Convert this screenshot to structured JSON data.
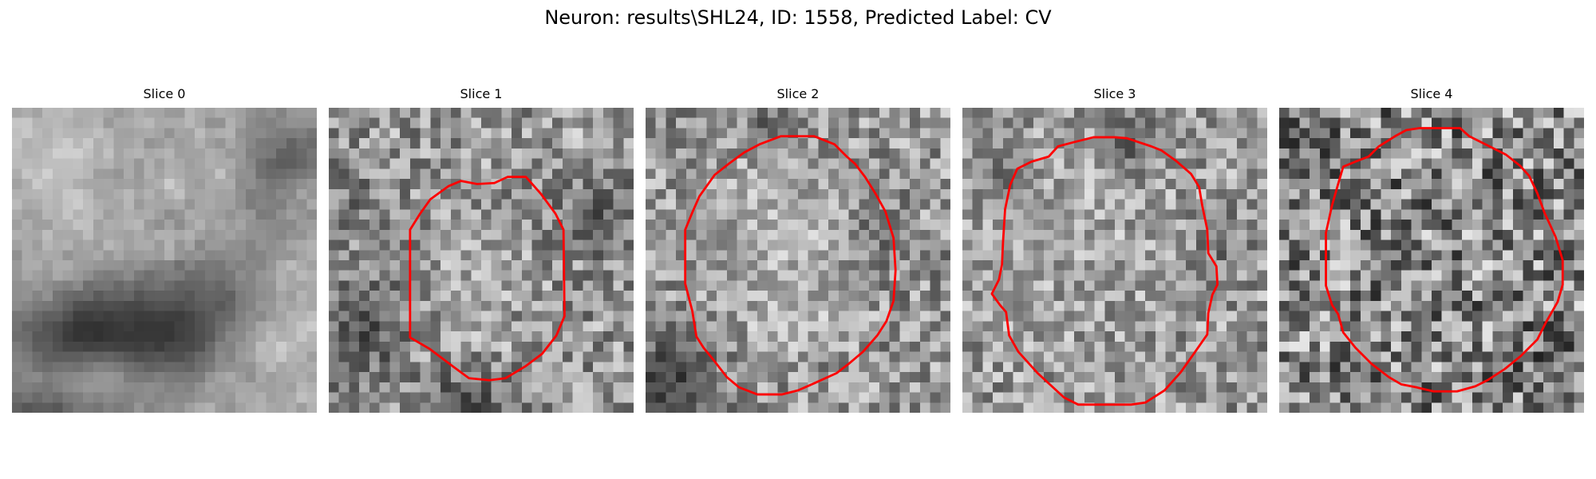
{
  "figure": {
    "title": "Neuron: results\\SHL24, ID: 1558, Predicted Label: CV",
    "contour_color": "#ff0000"
  },
  "panels": [
    {
      "title": "Slice 0",
      "seed": 11,
      "base": 168,
      "noise": 48,
      "smooth": true,
      "dark": [
        [
          8,
          22,
          9,
          5,
          0.75
        ],
        [
          16,
          21,
          5,
          5,
          0.5
        ],
        [
          27,
          4,
          4,
          3,
          0.45
        ],
        [
          24,
          9,
          3,
          3,
          0.3
        ],
        [
          3,
          30,
          8,
          3,
          0.45
        ],
        [
          21,
          18,
          4,
          4,
          0.35
        ]
      ],
      "light": [
        [
          3,
          4,
          5,
          4,
          0.4
        ],
        [
          8,
          26,
          5,
          3,
          0.3
        ],
        [
          25,
          22,
          5,
          5,
          0.25
        ]
      ],
      "contour": []
    },
    {
      "title": "Slice 1",
      "seed": 23,
      "base": 150,
      "noise": 68,
      "smooth": false,
      "dark": [
        [
          3,
          21,
          4,
          5,
          0.45
        ],
        [
          13,
          29,
          4,
          3,
          0.55
        ],
        [
          26,
          10,
          4,
          4,
          0.35
        ],
        [
          2,
          8,
          3,
          3,
          0.2
        ]
      ],
      "light": [
        [
          14,
          16,
          5,
          6,
          0.2
        ],
        [
          26,
          3,
          4,
          3,
          0.2
        ]
      ],
      "contour": [
        [
          14.6,
          7.5
        ],
        [
          16.3,
          7.4
        ],
        [
          17.6,
          6.8
        ],
        [
          19.4,
          6.8
        ],
        [
          20.9,
          8.5
        ],
        [
          22.3,
          10.4
        ],
        [
          23.1,
          12.0
        ],
        [
          23.2,
          20.5
        ],
        [
          22.4,
          22.4
        ],
        [
          21.0,
          24.2
        ],
        [
          19.4,
          25.4
        ],
        [
          17.4,
          26.6
        ],
        [
          15.8,
          26.8
        ],
        [
          13.8,
          26.6
        ],
        [
          12.3,
          25.5
        ],
        [
          9.9,
          23.7
        ],
        [
          8.0,
          22.6
        ],
        [
          8.0,
          12.0
        ],
        [
          9.0,
          10.4
        ],
        [
          10.0,
          9.0
        ],
        [
          11.8,
          7.7
        ],
        [
          13.0,
          7.2
        ]
      ]
    },
    {
      "title": "Slice 2",
      "seed": 37,
      "base": 150,
      "noise": 68,
      "smooth": false,
      "dark": [
        [
          2,
          26,
          4,
          5,
          0.55
        ],
        [
          12,
          2,
          3,
          2,
          0.45
        ],
        [
          6,
          12,
          3,
          3,
          0.3
        ],
        [
          22,
          12,
          3,
          3,
          0.25
        ]
      ],
      "light": [
        [
          12,
          12,
          8,
          9,
          0.3
        ],
        [
          14,
          21,
          4,
          3,
          0.25
        ]
      ],
      "contour": [
        [
          13.3,
          2.8
        ],
        [
          16.6,
          2.8
        ],
        [
          18.6,
          3.6
        ],
        [
          19.8,
          4.8
        ],
        [
          20.6,
          5.5
        ],
        [
          21.6,
          6.8
        ],
        [
          22.6,
          8.4
        ],
        [
          23.6,
          10.2
        ],
        [
          24.4,
          12.8
        ],
        [
          24.6,
          16.0
        ],
        [
          24.4,
          19.0
        ],
        [
          23.7,
          21.0
        ],
        [
          22.8,
          22.4
        ],
        [
          21.4,
          24.0
        ],
        [
          20.1,
          25.1
        ],
        [
          18.8,
          26.1
        ],
        [
          16.6,
          27.1
        ],
        [
          15.0,
          27.8
        ],
        [
          13.4,
          28.2
        ],
        [
          11.0,
          28.2
        ],
        [
          9.2,
          27.5
        ],
        [
          8.0,
          26.5
        ],
        [
          6.6,
          24.7
        ],
        [
          5.7,
          23.6
        ],
        [
          5.0,
          22.5
        ],
        [
          4.6,
          20.0
        ],
        [
          3.9,
          17.3
        ],
        [
          3.9,
          12.0
        ],
        [
          4.6,
          10.3
        ],
        [
          5.3,
          8.7
        ],
        [
          6.8,
          6.6
        ],
        [
          8.2,
          5.5
        ],
        [
          9.7,
          4.4
        ],
        [
          11.2,
          3.6
        ]
      ]
    },
    {
      "title": "Slice 3",
      "seed": 53,
      "base": 155,
      "noise": 66,
      "smooth": false,
      "dark": [
        [
          16,
          3,
          3,
          3,
          0.45
        ],
        [
          4,
          6,
          3,
          3,
          0.3
        ],
        [
          25,
          13,
          3,
          3,
          0.25
        ]
      ],
      "light": [
        [
          10,
          10,
          10,
          10,
          0.15
        ]
      ],
      "contour": [
        [
          12.9,
          2.9
        ],
        [
          15.0,
          2.9
        ],
        [
          16.2,
          3.0
        ],
        [
          18.6,
          3.8
        ],
        [
          19.6,
          4.2
        ],
        [
          21.0,
          5.2
        ],
        [
          22.5,
          6.5
        ],
        [
          23.3,
          7.8
        ],
        [
          23.6,
          9.6
        ],
        [
          24.1,
          12.0
        ],
        [
          24.2,
          14.3
        ],
        [
          25.0,
          15.6
        ],
        [
          25.1,
          17.4
        ],
        [
          24.6,
          18.4
        ],
        [
          24.2,
          20.2
        ],
        [
          24.1,
          22.3
        ],
        [
          22.7,
          24.3
        ],
        [
          21.5,
          26.0
        ],
        [
          19.9,
          27.8
        ],
        [
          18.0,
          29.0
        ],
        [
          16.6,
          29.2
        ],
        [
          14.5,
          29.2
        ],
        [
          11.4,
          29.2
        ],
        [
          10.0,
          28.5
        ],
        [
          8.7,
          27.3
        ],
        [
          7.4,
          26.1
        ],
        [
          5.5,
          24.0
        ],
        [
          4.6,
          22.4
        ],
        [
          4.3,
          20.1
        ],
        [
          3.7,
          19.4
        ],
        [
          2.9,
          18.3
        ],
        [
          3.6,
          16.9
        ],
        [
          3.9,
          15.4
        ],
        [
          4.0,
          13.2
        ],
        [
          4.2,
          10.0
        ],
        [
          4.7,
          7.6
        ],
        [
          5.4,
          6.0
        ],
        [
          6.8,
          5.3
        ],
        [
          8.5,
          4.8
        ],
        [
          9.4,
          3.8
        ],
        [
          10.9,
          3.4
        ]
      ]
    },
    {
      "title": "Slice 4",
      "seed": 71,
      "base": 135,
      "noise": 95,
      "smooth": false,
      "dark": [
        [
          0,
          5,
          3,
          4,
          0.2
        ],
        [
          26,
          25,
          4,
          3,
          0.2
        ]
      ],
      "light": [],
      "contour": [
        [
          13.8,
          2.0
        ],
        [
          15.8,
          2.0
        ],
        [
          17.8,
          2.0
        ],
        [
          18.7,
          2.8
        ],
        [
          20.7,
          3.8
        ],
        [
          22.3,
          4.6
        ],
        [
          23.7,
          5.7
        ],
        [
          24.6,
          6.7
        ],
        [
          25.4,
          8.4
        ],
        [
          26.1,
          10.3
        ],
        [
          27.2,
          12.7
        ],
        [
          27.9,
          15.0
        ],
        [
          27.9,
          17.4
        ],
        [
          27.4,
          19.1
        ],
        [
          26.2,
          21.2
        ],
        [
          25.4,
          22.8
        ],
        [
          23.8,
          24.4
        ],
        [
          22.2,
          25.7
        ],
        [
          20.5,
          26.8
        ],
        [
          19.3,
          27.4
        ],
        [
          17.5,
          27.9
        ],
        [
          15.2,
          27.9
        ],
        [
          13.5,
          27.5
        ],
        [
          12.0,
          27.2
        ],
        [
          10.8,
          26.5
        ],
        [
          9.1,
          25.2
        ],
        [
          7.5,
          23.6
        ],
        [
          6.3,
          22.1
        ],
        [
          5.8,
          20.3
        ],
        [
          5.2,
          19.4
        ],
        [
          4.6,
          17.5
        ],
        [
          4.6,
          14.9
        ],
        [
          4.6,
          12.3
        ],
        [
          5.2,
          9.6
        ],
        [
          5.8,
          7.5
        ],
        [
          6.3,
          5.8
        ],
        [
          7.5,
          5.3
        ],
        [
          8.8,
          4.8
        ],
        [
          9.8,
          3.8
        ],
        [
          11.4,
          2.8
        ],
        [
          12.5,
          2.2
        ]
      ]
    }
  ]
}
